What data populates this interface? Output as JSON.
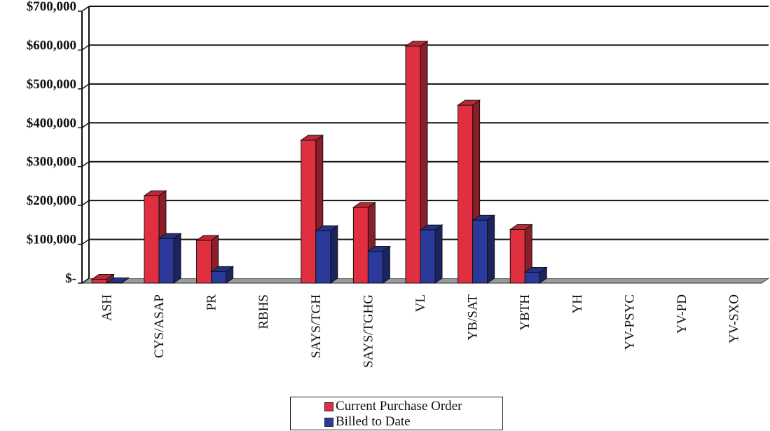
{
  "chart_data": {
    "type": "bar",
    "categories": [
      "ASH",
      "CYS/ASAP",
      "PR",
      "RBHS",
      "SAYS/TGH",
      "SAYS/TGHG",
      "VL",
      "YB/SAT",
      "YBTH",
      "YH",
      "YV-PSYC",
      "YV-PD",
      "YV-SXO"
    ],
    "series": [
      {
        "name": "Current Purchase Order",
        "color": "#e03040",
        "values": [
          10000,
          225000,
          110000,
          0,
          368000,
          195000,
          610000,
          458000,
          138000,
          0,
          0,
          0,
          0
        ]
      },
      {
        "name": "Billed to Date",
        "color": "#2b3a9a",
        "values": [
          1000,
          115000,
          30000,
          0,
          135000,
          82000,
          137000,
          162000,
          28000,
          0,
          0,
          0,
          0
        ]
      }
    ],
    "y_tick_labels": [
      "$-",
      "$100,000",
      "$200,000",
      "$300,000",
      "$400,000",
      "$500,000",
      "$600,000",
      "$700,000"
    ],
    "ylim": [
      0,
      700000
    ],
    "grid": true,
    "legend_position": "bottom-center",
    "title": "",
    "xlabel": "",
    "ylabel": ""
  }
}
